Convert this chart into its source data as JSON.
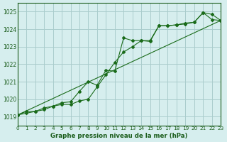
{
  "title": "Graphe pression niveau de la mer (hPa)",
  "background_color": "#d6eeee",
  "plot_bg_color": "#d6eeee",
  "line_color": "#1a6b1a",
  "grid_color": "#aacccc",
  "text_color": "#1a5c1a",
  "xlim": [
    0,
    23
  ],
  "ylim": [
    1018.5,
    1025.5
  ],
  "yticks": [
    1019,
    1020,
    1021,
    1022,
    1023,
    1024,
    1025
  ],
  "xticks": [
    0,
    1,
    2,
    3,
    4,
    5,
    6,
    7,
    8,
    9,
    10,
    11,
    12,
    13,
    14,
    15,
    16,
    17,
    18,
    19,
    20,
    21,
    22,
    23
  ],
  "series1": [
    1019.1,
    1019.3,
    1019.3,
    1019.4,
    1019.6,
    1019.7,
    1019.7,
    1019.9,
    1020.0,
    1020.7,
    1021.4,
    1022.1,
    1022.7,
    1023.0,
    1023.35,
    1023.35,
    1024.2,
    1024.2,
    1024.25,
    1024.3,
    1024.4,
    1024.95,
    1024.55,
    1024.5
  ],
  "series2": [
    1019.1,
    1019.2,
    1019.3,
    1019.5,
    1019.6,
    1019.8,
    1019.85,
    1020.45,
    1021.0,
    1020.8,
    1021.65,
    1021.6,
    1023.5,
    1023.35,
    1023.35,
    1023.3,
    1024.2,
    1024.2,
    1024.25,
    1024.35,
    1024.4,
    1024.95,
    1024.85,
    1024.5
  ],
  "series3_x": [
    0,
    23
  ],
  "series3_y": [
    1019.1,
    1024.5
  ]
}
